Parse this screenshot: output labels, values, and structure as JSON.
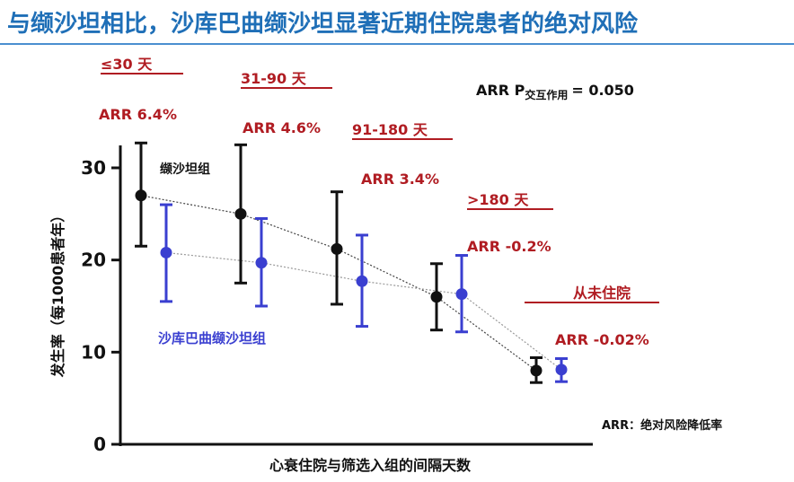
{
  "title": "与缬沙坦相比，沙库巴曲缬沙坦显著近期住院患者的绝对风险",
  "colors": {
    "title": "#1f6fb7",
    "valsartan": "#111111",
    "sacubitril": "#3a3fd0",
    "annotation": "#b01c22",
    "text": "#111111"
  },
  "chart_data": {
    "type": "scatter",
    "xlabel": "心衰住院与筛选入组的间隔天数",
    "ylabel": "发生率（每1000患者年）",
    "ylim": [
      0,
      35
    ],
    "yticks": [
      "0",
      "10",
      "20",
      "30"
    ],
    "ytick_values": [
      0,
      10,
      20,
      30
    ],
    "grid": false,
    "categories": [
      "≤30 天",
      "31-90 天",
      "91-180 天",
      ">180 天",
      "从未住院"
    ],
    "arr": [
      "ARR 6.4%",
      "ARR 4.6%",
      "ARR 3.4%",
      "ARR -0.2%",
      "ARR -0.02%"
    ],
    "series": [
      {
        "name": "缬沙坦组",
        "values": [
          27.0,
          25.0,
          21.2,
          16.0,
          8.0
        ],
        "lower": [
          21.5,
          17.5,
          15.2,
          12.4,
          6.7
        ],
        "upper": [
          32.7,
          32.5,
          27.4,
          19.6,
          9.4
        ]
      },
      {
        "name": "沙库巴曲缬沙坦组",
        "values": [
          20.8,
          19.7,
          17.7,
          16.3,
          8.1
        ],
        "lower": [
          15.5,
          15.0,
          12.8,
          12.2,
          6.8
        ],
        "upper": [
          26.0,
          24.5,
          22.7,
          20.5,
          9.3
        ]
      }
    ],
    "p_prefix": "ARR P",
    "p_subscript": "交互作用",
    "p_value": "= 0.050",
    "footnote": "ARR：绝对风险降低率"
  }
}
